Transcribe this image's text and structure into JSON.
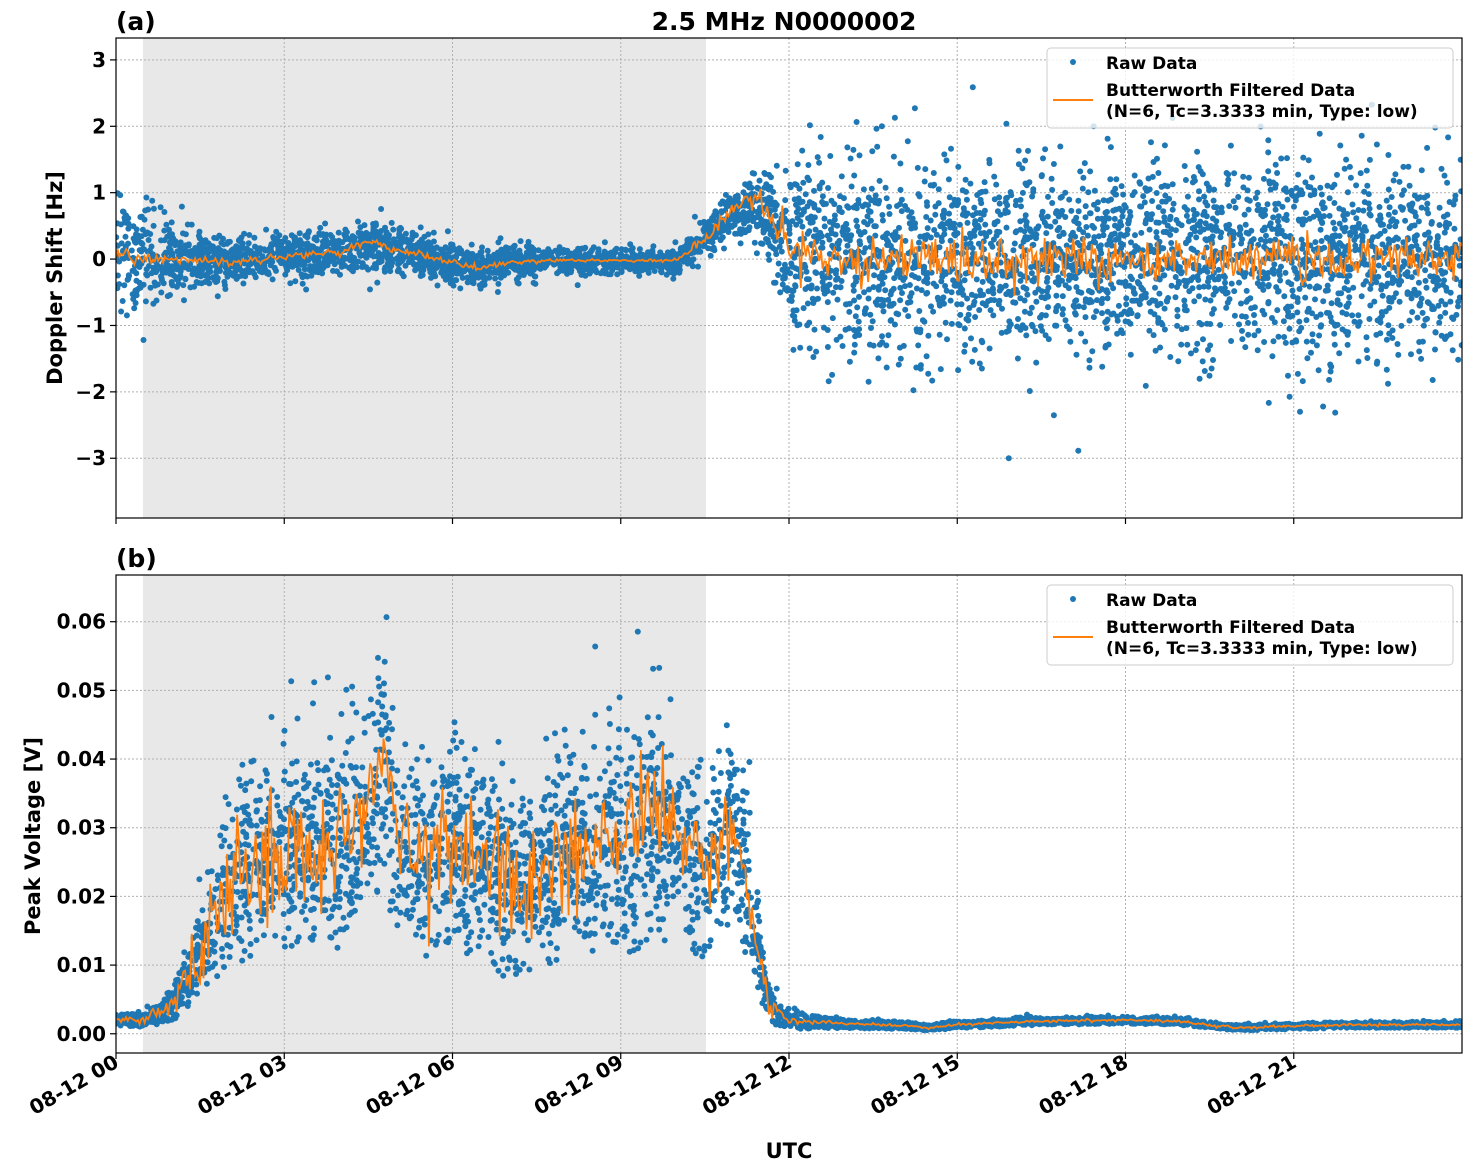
{
  "title": "2.5 MHz N0000002",
  "xlabel": "UTC",
  "x_tick_labels": [
    "08-12 00",
    "08-12 03",
    "08-12 06",
    "08-12 09",
    "08-12 12",
    "08-12 15",
    "08-12 18",
    "08-12 21"
  ],
  "colors": {
    "raw": "#1f77b4",
    "filtered": "#ff7f0e",
    "shade": "#e8e8e8"
  },
  "legend": {
    "raw": "Raw Data",
    "filtered_line1": "Butterworth Filtered Data",
    "filtered_line2": "(N=6, Tc=3.3333 min, Type: low)"
  },
  "chart_data": [
    {
      "type": "scatter+line",
      "panel_label": "(a)",
      "ylabel": "Doppler Shift [Hz]",
      "x_unit": "hours UTC on 08-12",
      "xlim": [
        0,
        24
      ],
      "ylim": [
        -3.9,
        3.33
      ],
      "y_ticks": [
        3,
        2,
        1,
        0,
        -1,
        -2,
        -3
      ],
      "y_tick_labels": [
        "3",
        "2",
        "1",
        "0",
        "−1",
        "−2",
        "−3"
      ],
      "grid": true,
      "legend_position": "top-right",
      "shaded_interval": [
        0.48,
        10.52
      ],
      "series": [
        {
          "name": "Raw Data",
          "kind": "scatter",
          "x": [
            0,
            0.5,
            1,
            2,
            3,
            4,
            4.5,
            5,
            6,
            6.5,
            7,
            8,
            9,
            10,
            10.5,
            11,
            11.5,
            12,
            13,
            15,
            18,
            21,
            24
          ],
          "center": [
            0.05,
            0,
            0,
            -0.05,
            0.05,
            0.1,
            0.2,
            0.15,
            -0.05,
            -0.15,
            -0.05,
            -0.02,
            -0.02,
            -0.02,
            0.3,
            0.7,
            0.8,
            0.1,
            0,
            0,
            0,
            0,
            0
          ],
          "spread": [
            1.0,
            0.8,
            0.45,
            0.3,
            0.3,
            0.35,
            0.35,
            0.3,
            0.3,
            0.25,
            0.22,
            0.18,
            0.16,
            0.16,
            0.25,
            0.3,
            0.5,
            1.2,
            1.3,
            1.3,
            1.3,
            1.3,
            1.3
          ]
        },
        {
          "name": "Butterworth Filtered Data",
          "kind": "line",
          "x": [
            0,
            0.5,
            1,
            2,
            3,
            4,
            4.5,
            5,
            6,
            6.5,
            7,
            8,
            9,
            10,
            10.5,
            11,
            11.5,
            12,
            13,
            15,
            18,
            21,
            24
          ],
          "y": [
            0.05,
            0,
            0,
            -0.05,
            0.05,
            0.1,
            0.25,
            0.15,
            -0.05,
            -0.15,
            -0.05,
            -0.02,
            -0.02,
            -0.02,
            0.3,
            0.75,
            0.85,
            0.1,
            0,
            0,
            0,
            0,
            0
          ],
          "noise": [
            0.08,
            0.04,
            0.03,
            0.03,
            0.03,
            0.03,
            0.03,
            0.03,
            0.03,
            0.02,
            0.02,
            0.01,
            0.01,
            0.01,
            0.04,
            0.06,
            0.1,
            0.18,
            0.18,
            0.18,
            0.18,
            0.18,
            0.18
          ]
        }
      ]
    },
    {
      "type": "scatter+line",
      "panel_label": "(b)",
      "ylabel": "Peak Voltage [V]",
      "x_unit": "hours UTC on 08-12",
      "xlim": [
        0,
        24
      ],
      "ylim": [
        -0.0028,
        0.0668
      ],
      "y_ticks": [
        0.06,
        0.05,
        0.04,
        0.03,
        0.02,
        0.01,
        0
      ],
      "y_tick_labels": [
        "0.06",
        "0.05",
        "0.04",
        "0.03",
        "0.02",
        "0.01",
        "0.00"
      ],
      "grid": true,
      "legend_position": "top-right",
      "shaded_interval": [
        0.48,
        10.52
      ],
      "series": [
        {
          "name": "Raw Data",
          "kind": "scatter",
          "x": [
            0,
            0.5,
            1,
            1.5,
            2,
            2.5,
            3,
            3.5,
            4,
            4.5,
            4.8,
            5,
            5.5,
            6,
            6.5,
            7,
            7.5,
            8,
            8.5,
            9,
            9.5,
            10,
            10.5,
            11,
            11.3,
            11.6,
            12,
            13,
            14,
            14.5,
            15,
            16,
            17,
            18,
            19,
            19.5,
            20,
            21,
            22,
            24
          ],
          "center": [
            0.002,
            0.002,
            0.004,
            0.012,
            0.022,
            0.025,
            0.028,
            0.027,
            0.028,
            0.032,
            0.038,
            0.03,
            0.024,
            0.027,
            0.025,
            0.022,
            0.023,
            0.026,
            0.027,
            0.028,
            0.03,
            0.029,
            0.024,
            0.03,
            0.02,
            0.005,
            0.002,
            0.0015,
            0.0012,
            0.0009,
            0.0013,
            0.0017,
            0.0019,
            0.002,
            0.0018,
            0.0012,
            0.0009,
            0.0011,
            0.0013,
            0.0013
          ],
          "spread": [
            0.0008,
            0.001,
            0.002,
            0.006,
            0.011,
            0.013,
            0.014,
            0.014,
            0.014,
            0.015,
            0.016,
            0.014,
            0.012,
            0.014,
            0.013,
            0.013,
            0.013,
            0.014,
            0.014,
            0.015,
            0.016,
            0.015,
            0.012,
            0.012,
            0.01,
            0.003,
            0.0012,
            0.0006,
            0.0005,
            0.0004,
            0.0005,
            0.0005,
            0.0005,
            0.0005,
            0.0005,
            0.0004,
            0.0004,
            0.0004,
            0.0004,
            0.0004
          ]
        },
        {
          "name": "Butterworth Filtered Data",
          "kind": "line",
          "x": [
            0,
            0.5,
            1,
            1.5,
            2,
            2.5,
            3,
            3.5,
            4,
            4.5,
            4.8,
            5,
            5.5,
            6,
            6.5,
            7,
            7.5,
            8,
            8.5,
            9,
            9.5,
            10,
            10.5,
            11,
            11.3,
            11.6,
            12,
            13,
            14,
            14.5,
            15,
            16,
            17,
            18,
            19,
            19.5,
            20,
            21,
            22,
            24
          ],
          "y": [
            0.002,
            0.002,
            0.004,
            0.012,
            0.022,
            0.025,
            0.028,
            0.027,
            0.028,
            0.032,
            0.042,
            0.03,
            0.024,
            0.027,
            0.025,
            0.022,
            0.023,
            0.026,
            0.027,
            0.028,
            0.032,
            0.029,
            0.024,
            0.032,
            0.02,
            0.005,
            0.002,
            0.0015,
            0.0012,
            0.0009,
            0.0013,
            0.0017,
            0.0019,
            0.002,
            0.0018,
            0.0012,
            0.0009,
            0.0011,
            0.0013,
            0.0013
          ],
          "noise": [
            0.0002,
            0.0003,
            0.001,
            0.003,
            0.004,
            0.004,
            0.004,
            0.004,
            0.004,
            0.005,
            0.005,
            0.004,
            0.004,
            0.004,
            0.004,
            0.004,
            0.004,
            0.004,
            0.004,
            0.004,
            0.005,
            0.004,
            0.004,
            0.003,
            0.002,
            0.001,
            0.0003,
            0.0001,
            0.0001,
            0.0001,
            0.0001,
            0.0001,
            0.0001,
            0.0001,
            0.0001,
            0.0001,
            0.0001,
            0.0001,
            0.0001,
            0.0001
          ]
        }
      ]
    }
  ]
}
